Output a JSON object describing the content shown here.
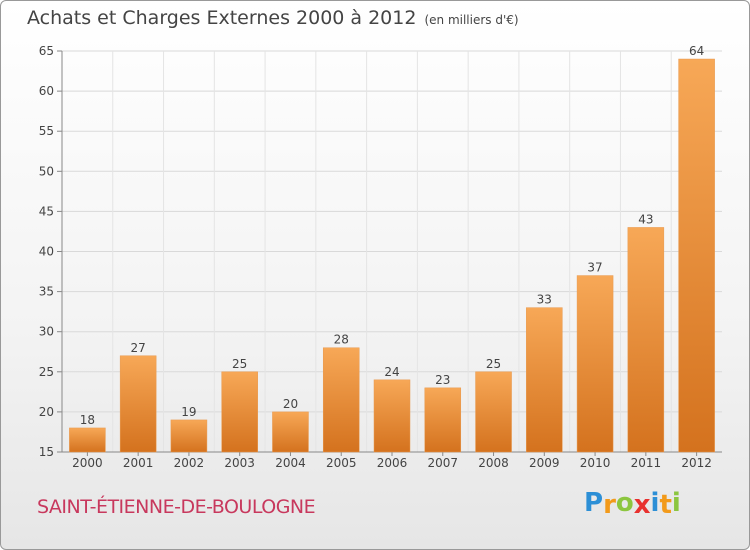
{
  "header": {
    "title": "Achats et Charges Externes 2000 à 2012",
    "subtitle": "(en milliers d'€)"
  },
  "footer": {
    "place": "SAINT-ÉTIENNE-DE-BOULOGNE",
    "logo_letters": [
      "P",
      "r",
      "o",
      "x",
      "i",
      "t",
      "i"
    ],
    "logo_colors": [
      "#2c8fd6",
      "#f29a1a",
      "#8cc63f",
      "#e8312f",
      "#2c8fd6",
      "#f29a1a",
      "#8cc63f"
    ]
  },
  "chart_data": {
    "type": "bar",
    "title": "Achats et Charges Externes 2000 à 2012",
    "subtitle": "(en milliers d'€)",
    "categories": [
      "2000",
      "2001",
      "2002",
      "2003",
      "2004",
      "2005",
      "2006",
      "2007",
      "2008",
      "2009",
      "2010",
      "2011",
      "2012"
    ],
    "values": [
      18,
      27,
      19,
      25,
      20,
      28,
      24,
      23,
      25,
      33,
      37,
      43,
      64
    ],
    "ylim": [
      15,
      65
    ],
    "yticks": [
      15,
      20,
      25,
      30,
      35,
      40,
      45,
      50,
      55,
      60,
      65
    ],
    "grid": true,
    "bar_color_top": "#f7a857",
    "bar_color_bottom": "#d4721e"
  }
}
